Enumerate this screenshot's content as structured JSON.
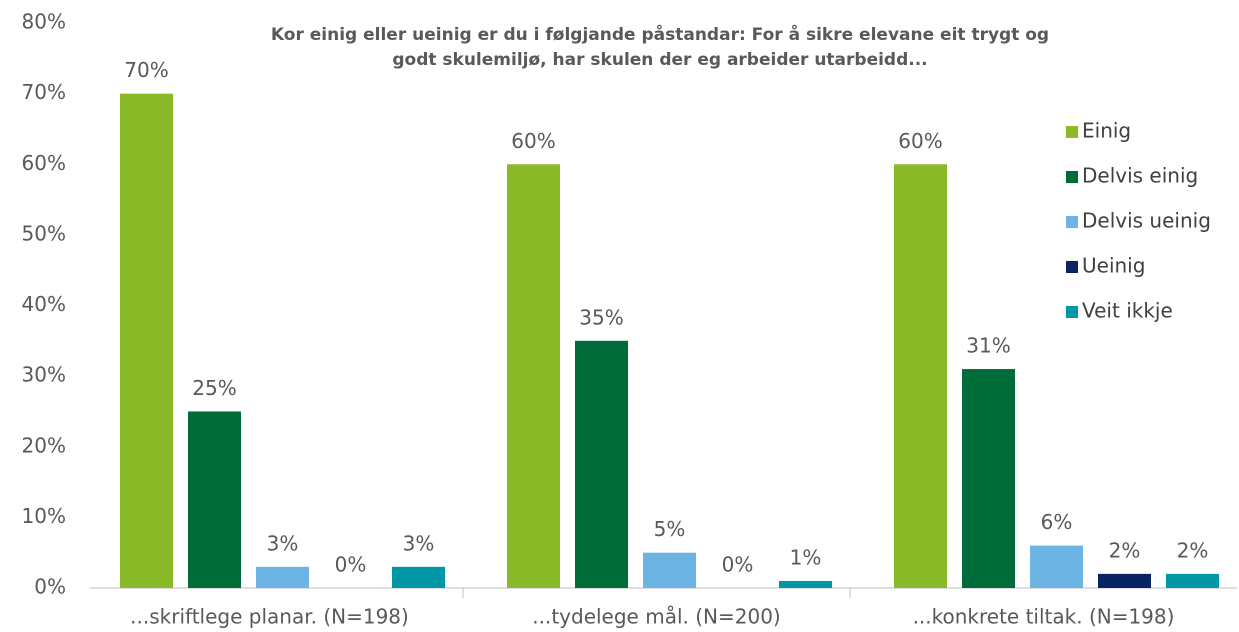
{
  "chart_data": {
    "type": "bar",
    "title": [
      "Kor einig eller ueinig er du i følgjande påstandar: For å sikre elevane eit trygt og",
      "godt skulemiljø, har skulen der eg arbeider utarbeidd..."
    ],
    "categories": [
      "...skriftlege planar. (N=198)",
      "...tydelege mål. (N=200)",
      "...konkrete tiltak. (N=198)"
    ],
    "series": [
      {
        "name": "Einig",
        "color": "#8aba27",
        "values": [
          70,
          60,
          60
        ],
        "value_labels": [
          "70%",
          "60%",
          "60%"
        ]
      },
      {
        "name": "Delvis einig",
        "color": "#006c3a",
        "values": [
          25,
          35,
          31
        ],
        "value_labels": [
          "25%",
          "35%",
          "31%"
        ]
      },
      {
        "name": "Delvis ueinig",
        "color": "#6cb4e4",
        "values": [
          3,
          5,
          6
        ],
        "value_labels": [
          "3%",
          "5%",
          "6%"
        ]
      },
      {
        "name": "Ueinig",
        "color": "#0a2463",
        "values": [
          0,
          0,
          2
        ],
        "value_labels": [
          "0%",
          "0%",
          "2%"
        ]
      },
      {
        "name": "Veit ikkje",
        "color": "#0097a7",
        "values": [
          3,
          1,
          2
        ],
        "value_labels": [
          "3%",
          "1%",
          "2%"
        ]
      }
    ],
    "ylim": [
      0,
      80
    ],
    "yticks": [
      {
        "value": 0,
        "label": "0%"
      },
      {
        "value": 10,
        "label": "10%"
      },
      {
        "value": 20,
        "label": "20%"
      },
      {
        "value": 30,
        "label": "30%"
      },
      {
        "value": 40,
        "label": "40%"
      },
      {
        "value": 50,
        "label": "50%"
      },
      {
        "value": 60,
        "label": "60%"
      },
      {
        "value": 70,
        "label": "70%"
      },
      {
        "value": 80,
        "label": "80%"
      }
    ],
    "grid": false,
    "legend": "right"
  }
}
